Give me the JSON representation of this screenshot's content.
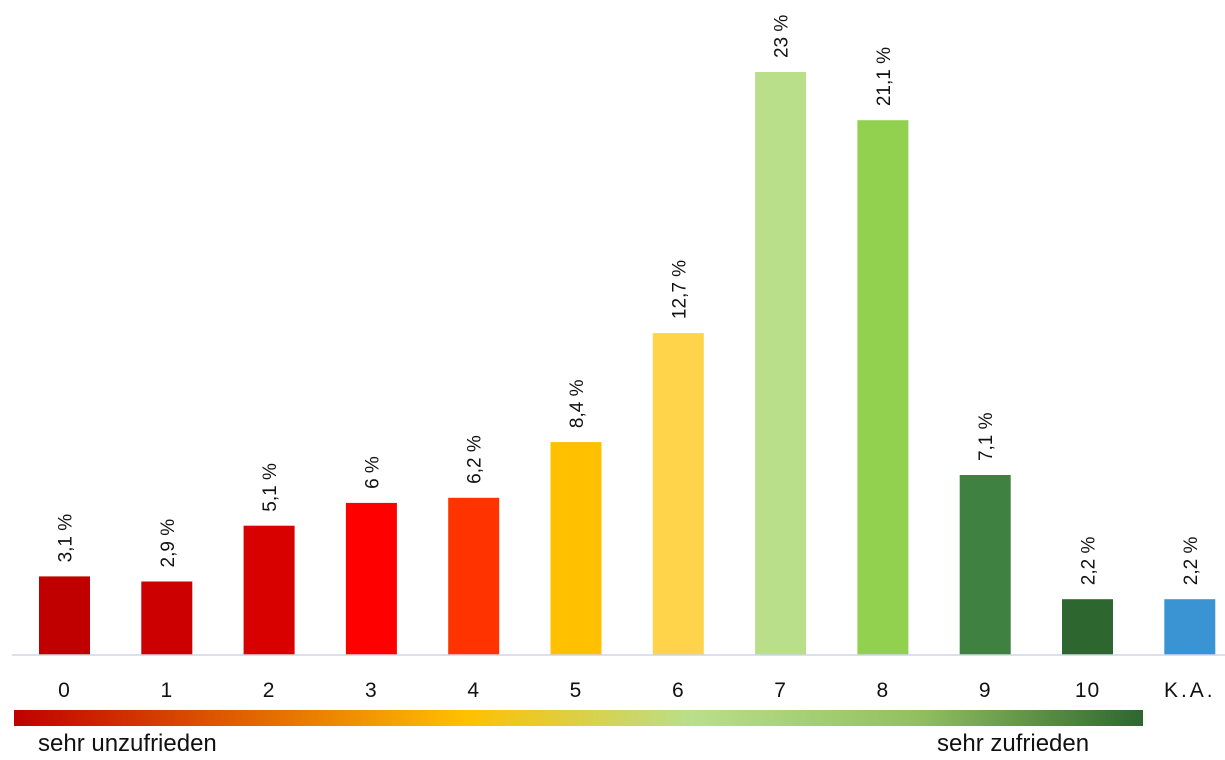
{
  "chart_data": {
    "type": "bar",
    "categories": [
      "0",
      "1",
      "2",
      "3",
      "4",
      "5",
      "6",
      "7",
      "8",
      "9",
      "10",
      "K.A."
    ],
    "values": [
      3.1,
      2.9,
      5.1,
      6,
      6.2,
      8.4,
      12.7,
      23,
      21.1,
      7.1,
      2.2,
      2.2
    ],
    "data_labels": [
      "3,1 %",
      "2,9 %",
      "5,1 %",
      "6 %",
      "6,2 %",
      "8,4 %",
      "12,7 %",
      "23 %",
      "21,1 %",
      "7,1 %",
      "2,2 %",
      "2,2 %"
    ],
    "colors": [
      "#C00000",
      "#CC0000",
      "#D90000",
      "#FF0000",
      "#FF3300",
      "#FFC000",
      "#FFD44A",
      "#B9DF8A",
      "#92D050",
      "#3E8140",
      "#2E6630",
      "#3A94D4"
    ],
    "title": "",
    "xlabel": "",
    "ylabel": "",
    "ylim": [
      0,
      23
    ],
    "grid": false,
    "legend": "none",
    "axis_color": "#D0D6E6"
  },
  "scale": {
    "left_label": "sehr unzufrieden",
    "right_label": "sehr zufrieden",
    "gradient_stops": [
      "#C00000",
      "#E06000",
      "#FFC000",
      "#B9DF8A",
      "#92C060",
      "#2E6630"
    ]
  }
}
